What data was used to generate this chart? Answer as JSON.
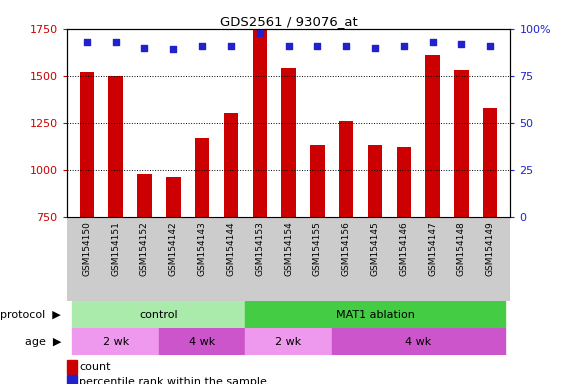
{
  "title": "GDS2561 / 93076_at",
  "samples": [
    "GSM154150",
    "GSM154151",
    "GSM154152",
    "GSM154142",
    "GSM154143",
    "GSM154144",
    "GSM154153",
    "GSM154154",
    "GSM154155",
    "GSM154156",
    "GSM154145",
    "GSM154146",
    "GSM154147",
    "GSM154148",
    "GSM154149"
  ],
  "bar_values": [
    1520,
    1500,
    980,
    960,
    1170,
    1300,
    1750,
    1540,
    1130,
    1260,
    1130,
    1120,
    1610,
    1530,
    1330
  ],
  "dot_values": [
    93,
    93,
    90,
    89,
    91,
    91,
    98,
    91,
    91,
    91,
    90,
    91,
    93,
    92,
    91
  ],
  "ylim_left": [
    750,
    1750
  ],
  "ylim_right": [
    0,
    100
  ],
  "yticks_left": [
    750,
    1000,
    1250,
    1500,
    1750
  ],
  "yticks_right": [
    0,
    25,
    50,
    75,
    100
  ],
  "bar_color": "#cc0000",
  "dot_color": "#2222cc",
  "protocol_groups": [
    {
      "label": "control",
      "start": 0,
      "end": 6,
      "color": "#aaeaaa"
    },
    {
      "label": "MAT1 ablation",
      "start": 6,
      "end": 15,
      "color": "#44cc44"
    }
  ],
  "age_groups": [
    {
      "label": "2 wk",
      "start": 0,
      "end": 3,
      "color": "#ee99ee"
    },
    {
      "label": "4 wk",
      "start": 3,
      "end": 6,
      "color": "#cc55cc"
    },
    {
      "label": "2 wk",
      "start": 6,
      "end": 9,
      "color": "#ee99ee"
    },
    {
      "label": "4 wk",
      "start": 9,
      "end": 15,
      "color": "#cc55cc"
    }
  ],
  "tick_label_color_left": "#cc0000",
  "tick_label_color_right": "#2222cc",
  "xtick_area_color": "#cccccc",
  "protocol_label": "protocol",
  "age_label": "age",
  "legend": [
    {
      "label": "count",
      "color": "#cc0000"
    },
    {
      "label": "percentile rank within the sample",
      "color": "#2222cc"
    }
  ]
}
